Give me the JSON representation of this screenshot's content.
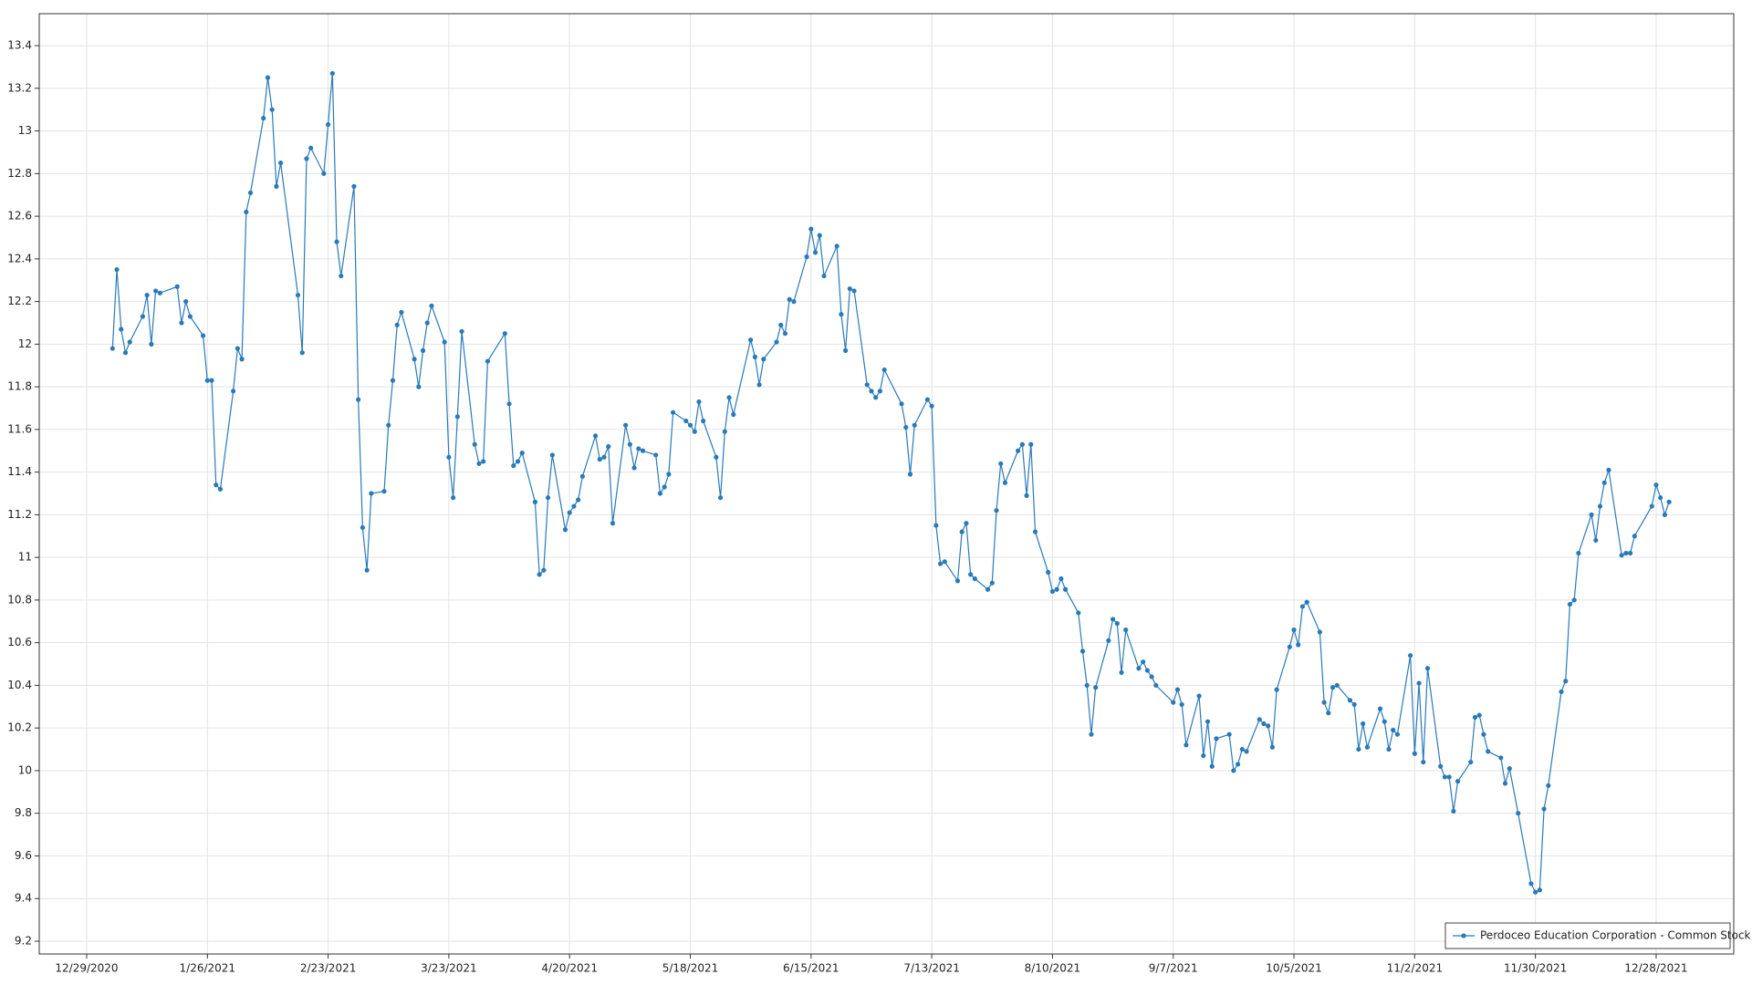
{
  "chart_data": {
    "type": "line",
    "legend": "lower right",
    "grid": true,
    "markers": true,
    "xlim": [
      "12/18/2020",
      "1/15/2022"
    ],
    "xticks": [
      "12/29/2020",
      "1/26/2021",
      "2/23/2021",
      "3/23/2021",
      "4/20/2021",
      "5/18/2021",
      "6/15/2021",
      "7/13/2021",
      "8/10/2021",
      "9/7/2021",
      "10/5/2021",
      "11/2/2021",
      "11/30/2021",
      "12/28/2021"
    ],
    "ylim": [
      9.14,
      13.55
    ],
    "yticks": [
      9.2,
      9.4,
      9.6,
      9.8,
      10,
      10.2,
      10.4,
      10.6,
      10.8,
      11,
      11.2,
      11.4,
      11.6,
      11.8,
      12,
      12.2,
      12.4,
      12.6,
      12.8,
      13,
      13.2,
      13.4
    ],
    "x": [
      "1/4/2021",
      "1/5/2021",
      "1/6/2021",
      "1/7/2021",
      "1/8/2021",
      "1/11/2021",
      "1/12/2021",
      "1/13/2021",
      "1/14/2021",
      "1/15/2021",
      "1/19/2021",
      "1/20/2021",
      "1/21/2021",
      "1/22/2021",
      "1/25/2021",
      "1/26/2021",
      "1/27/2021",
      "1/28/2021",
      "1/29/2021",
      "2/1/2021",
      "2/2/2021",
      "2/3/2021",
      "2/4/2021",
      "2/5/2021",
      "2/8/2021",
      "2/9/2021",
      "2/10/2021",
      "2/11/2021",
      "2/12/2021",
      "2/16/2021",
      "2/17/2021",
      "2/18/2021",
      "2/19/2021",
      "2/22/2021",
      "2/23/2021",
      "2/24/2021",
      "2/25/2021",
      "2/26/2021",
      "3/1/2021",
      "3/2/2021",
      "3/3/2021",
      "3/4/2021",
      "3/5/2021",
      "3/8/2021",
      "3/9/2021",
      "3/10/2021",
      "3/11/2021",
      "3/12/2021",
      "3/15/2021",
      "3/16/2021",
      "3/17/2021",
      "3/18/2021",
      "3/19/2021",
      "3/22/2021",
      "3/23/2021",
      "3/24/2021",
      "3/25/2021",
      "3/26/2021",
      "3/29/2021",
      "3/30/2021",
      "3/31/2021",
      "4/1/2021",
      "4/5/2021",
      "4/6/2021",
      "4/7/2021",
      "4/8/2021",
      "4/9/2021",
      "4/12/2021",
      "4/13/2021",
      "4/14/2021",
      "4/15/2021",
      "4/16/2021",
      "4/19/2021",
      "4/20/2021",
      "4/21/2021",
      "4/22/2021",
      "4/23/2021",
      "4/26/2021",
      "4/27/2021",
      "4/28/2021",
      "4/29/2021",
      "4/30/2021",
      "5/3/2021",
      "5/4/2021",
      "5/5/2021",
      "5/6/2021",
      "5/7/2021",
      "5/10/2021",
      "5/11/2021",
      "5/12/2021",
      "5/13/2021",
      "5/14/2021",
      "5/17/2021",
      "5/18/2021",
      "5/19/2021",
      "5/20/2021",
      "5/21/2021",
      "5/24/2021",
      "5/25/2021",
      "5/26/2021",
      "5/27/2021",
      "5/28/2021",
      "6/1/2021",
      "6/2/2021",
      "6/3/2021",
      "6/4/2021",
      "6/7/2021",
      "6/8/2021",
      "6/9/2021",
      "6/10/2021",
      "6/11/2021",
      "6/14/2021",
      "6/15/2021",
      "6/16/2021",
      "6/17/2021",
      "6/18/2021",
      "6/21/2021",
      "6/22/2021",
      "6/23/2021",
      "6/24/2021",
      "6/25/2021",
      "6/28/2021",
      "6/29/2021",
      "6/30/2021",
      "7/1/2021",
      "7/2/2021",
      "7/6/2021",
      "7/7/2021",
      "7/8/2021",
      "7/9/2021",
      "7/12/2021",
      "7/13/2021",
      "7/14/2021",
      "7/15/2021",
      "7/16/2021",
      "7/19/2021",
      "7/20/2021",
      "7/21/2021",
      "7/22/2021",
      "7/23/2021",
      "7/26/2021",
      "7/27/2021",
      "7/28/2021",
      "7/29/2021",
      "7/30/2021",
      "8/2/2021",
      "8/3/2021",
      "8/4/2021",
      "8/5/2021",
      "8/6/2021",
      "8/9/2021",
      "8/10/2021",
      "8/11/2021",
      "8/12/2021",
      "8/13/2021",
      "8/16/2021",
      "8/17/2021",
      "8/18/2021",
      "8/19/2021",
      "8/20/2021",
      "8/23/2021",
      "8/24/2021",
      "8/25/2021",
      "8/26/2021",
      "8/27/2021",
      "8/30/2021",
      "8/31/2021",
      "9/1/2021",
      "9/2/2021",
      "9/3/2021",
      "9/7/2021",
      "9/8/2021",
      "9/9/2021",
      "9/10/2021",
      "9/13/2021",
      "9/14/2021",
      "9/15/2021",
      "9/16/2021",
      "9/17/2021",
      "9/20/2021",
      "9/21/2021",
      "9/22/2021",
      "9/23/2021",
      "9/24/2021",
      "9/27/2021",
      "9/28/2021",
      "9/29/2021",
      "9/30/2021",
      "10/1/2021",
      "10/4/2021",
      "10/5/2021",
      "10/6/2021",
      "10/7/2021",
      "10/8/2021",
      "10/11/2021",
      "10/12/2021",
      "10/13/2021",
      "10/14/2021",
      "10/15/2021",
      "10/18/2021",
      "10/19/2021",
      "10/20/2021",
      "10/21/2021",
      "10/22/2021",
      "10/25/2021",
      "10/26/2021",
      "10/27/2021",
      "10/28/2021",
      "10/29/2021",
      "11/1/2021",
      "11/2/2021",
      "11/3/2021",
      "11/4/2021",
      "11/5/2021",
      "11/8/2021",
      "11/9/2021",
      "11/10/2021",
      "11/11/2021",
      "11/12/2021",
      "11/15/2021",
      "11/16/2021",
      "11/17/2021",
      "11/18/2021",
      "11/19/2021",
      "11/22/2021",
      "11/23/2021",
      "11/24/2021",
      "11/26/2021",
      "11/29/2021",
      "11/30/2021",
      "12/1/2021",
      "12/2/2021",
      "12/3/2021",
      "12/6/2021",
      "12/7/2021",
      "12/8/2021",
      "12/9/2021",
      "12/10/2021",
      "12/13/2021",
      "12/14/2021",
      "12/15/2021",
      "12/16/2021",
      "12/17/2021",
      "12/20/2021",
      "12/21/2021",
      "12/22/2021",
      "12/23/2021",
      "12/27/2021",
      "12/28/2021",
      "12/29/2021",
      "12/30/2021",
      "12/31/2021"
    ],
    "series": [
      {
        "name": "Perdoceo Education Corporation - Common Stock",
        "color": "#2a7ab9",
        "values": [
          11.98,
          12.35,
          12.07,
          11.96,
          12.01,
          12.13,
          12.23,
          12.0,
          12.25,
          12.24,
          12.27,
          12.1,
          12.2,
          12.13,
          12.04,
          11.83,
          11.83,
          11.34,
          11.32,
          11.78,
          11.98,
          11.93,
          12.62,
          12.71,
          13.06,
          13.25,
          13.1,
          12.74,
          12.85,
          12.23,
          11.96,
          12.87,
          12.92,
          12.8,
          13.03,
          13.27,
          12.48,
          12.32,
          12.74,
          11.74,
          11.14,
          10.94,
          11.3,
          11.31,
          11.62,
          11.83,
          12.09,
          12.15,
          11.93,
          11.8,
          11.97,
          12.1,
          12.18,
          12.01,
          11.47,
          11.28,
          11.66,
          12.06,
          11.53,
          11.44,
          11.45,
          11.92,
          12.05,
          11.72,
          11.43,
          11.45,
          11.49,
          11.26,
          10.92,
          10.94,
          11.28,
          11.48,
          11.13,
          11.21,
          11.24,
          11.27,
          11.38,
          11.57,
          11.46,
          11.47,
          11.52,
          11.16,
          11.62,
          11.53,
          11.42,
          11.51,
          11.5,
          11.48,
          11.3,
          11.33,
          11.39,
          11.68,
          11.64,
          11.62,
          11.59,
          11.73,
          11.64,
          11.47,
          11.28,
          11.59,
          11.75,
          11.67,
          12.02,
          11.94,
          11.81,
          11.93,
          12.01,
          12.09,
          12.05,
          12.21,
          12.2,
          12.41,
          12.54,
          12.43,
          12.51,
          12.32,
          12.46,
          12.14,
          11.97,
          12.26,
          12.25,
          11.81,
          11.78,
          11.75,
          11.78,
          11.88,
          11.72,
          11.61,
          11.39,
          11.62,
          11.74,
          11.71,
          11.15,
          10.97,
          10.98,
          10.89,
          11.12,
          11.16,
          10.92,
          10.9,
          10.85,
          10.88,
          11.22,
          11.44,
          11.35,
          11.5,
          11.53,
          11.29,
          11.53,
          11.12,
          10.93,
          10.84,
          10.85,
          10.9,
          10.85,
          10.74,
          10.56,
          10.4,
          10.17,
          10.39,
          10.61,
          10.71,
          10.69,
          10.46,
          10.66,
          10.48,
          10.51,
          10.47,
          10.44,
          10.4,
          10.32,
          10.38,
          10.31,
          10.12,
          10.35,
          10.07,
          10.23,
          10.02,
          10.15,
          10.17,
          10.0,
          10.03,
          10.1,
          10.09,
          10.24,
          10.22,
          10.21,
          10.11,
          10.38,
          10.58,
          10.66,
          10.59,
          10.77,
          10.79,
          10.65,
          10.32,
          10.27,
          10.39,
          10.4,
          10.33,
          10.31,
          10.1,
          10.22,
          10.11,
          10.29,
          10.23,
          10.1,
          10.19,
          10.17,
          10.54,
          10.08,
          10.41,
          10.04,
          10.48,
          10.02,
          9.97,
          9.97,
          9.81,
          9.95,
          10.04,
          10.25,
          10.26,
          10.17,
          10.09,
          10.06,
          9.94,
          10.01,
          9.8,
          9.47,
          9.43,
          9.44,
          9.82,
          9.93,
          10.37,
          10.42,
          10.78,
          10.8,
          11.02,
          11.2,
          11.08,
          11.24,
          11.35,
          11.41,
          11.01,
          11.02,
          11.02,
          11.1,
          11.24,
          11.34,
          11.28,
          11.2,
          11.26
        ]
      }
    ]
  }
}
